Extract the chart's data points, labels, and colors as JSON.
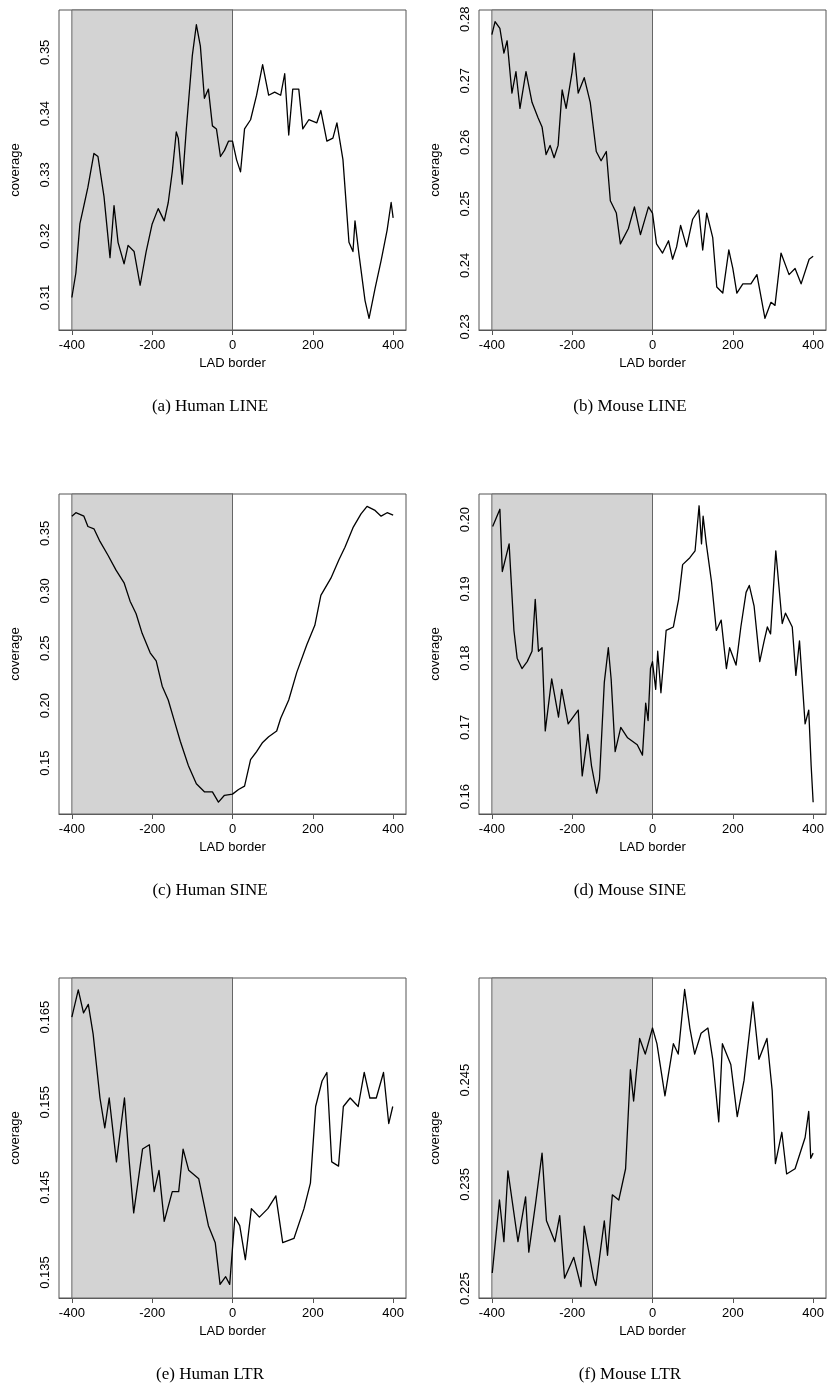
{
  "chart_data": [
    {
      "type": "line",
      "title": "(a) Human LINE",
      "xlabel": "LAD border",
      "ylabel": "coverage",
      "color": "#000000",
      "marker": "none",
      "xlim": [
        -432,
        432
      ],
      "xticks": [
        -400,
        -200,
        0,
        200,
        400
      ],
      "ylim": [
        0.3047,
        0.3569
      ],
      "yticks": [
        0.31,
        0.32,
        0.33,
        0.34,
        0.35
      ],
      "bands": [
        {
          "axis": "x",
          "from": -400,
          "to": 0,
          "color": "#d3d3d3"
        }
      ],
      "x": [
        -400,
        -390,
        -380,
        -370,
        -360,
        -345,
        -335,
        -320,
        -305,
        -295,
        -285,
        -270,
        -260,
        -245,
        -230,
        -215,
        -200,
        -185,
        -170,
        -160,
        -150,
        -140,
        -135,
        -125,
        -115,
        -100,
        -90,
        -80,
        -70,
        -60,
        -50,
        -40,
        -30,
        -20,
        -10,
        0,
        10,
        20,
        30,
        45,
        60,
        75,
        90,
        105,
        120,
        130,
        140,
        150,
        165,
        175,
        190,
        210,
        220,
        235,
        250,
        260,
        275,
        290,
        300,
        305,
        315,
        330,
        340,
        355,
        370,
        385,
        395,
        400
      ],
      "values": [
        0.31,
        0.314,
        0.322,
        0.325,
        0.328,
        0.3335,
        0.333,
        0.3265,
        0.3165,
        0.325,
        0.319,
        0.3155,
        0.3185,
        0.3175,
        0.312,
        0.3175,
        0.322,
        0.3245,
        0.3225,
        0.3255,
        0.3305,
        0.337,
        0.336,
        0.3285,
        0.3375,
        0.3495,
        0.3545,
        0.351,
        0.3425,
        0.344,
        0.338,
        0.3375,
        0.333,
        0.334,
        0.3355,
        0.3355,
        0.3325,
        0.3305,
        0.3375,
        0.339,
        0.343,
        0.348,
        0.343,
        0.3435,
        0.343,
        0.3465,
        0.3365,
        0.344,
        0.344,
        0.3375,
        0.339,
        0.3385,
        0.3405,
        0.3355,
        0.336,
        0.3385,
        0.3325,
        0.319,
        0.3175,
        0.3225,
        0.317,
        0.3095,
        0.3066,
        0.3115,
        0.316,
        0.321,
        0.3255,
        0.323
      ]
    },
    {
      "type": "line",
      "title": "(b) Mouse LINE",
      "xlabel": "LAD border",
      "ylabel": "coverage",
      "color": "#000000",
      "marker": "none",
      "xlim": [
        -432,
        432
      ],
      "xticks": [
        -400,
        -200,
        0,
        200,
        400
      ],
      "ylim": [
        0.2295,
        0.2815
      ],
      "yticks": [
        0.23,
        0.24,
        0.25,
        0.26,
        0.27,
        0.28
      ],
      "bands": [
        {
          "axis": "x",
          "from": -400,
          "to": 0,
          "color": "#d3d3d3"
        }
      ],
      "x": [
        -400,
        -392,
        -380,
        -370,
        -362,
        -350,
        -340,
        -330,
        -315,
        -300,
        -285,
        -275,
        -265,
        -255,
        -245,
        -235,
        -225,
        -215,
        -200,
        -195,
        -185,
        -170,
        -155,
        -140,
        -128,
        -115,
        -105,
        -90,
        -80,
        -60,
        -45,
        -30,
        -10,
        0,
        10,
        25,
        40,
        50,
        60,
        70,
        85,
        100,
        115,
        125,
        135,
        150,
        160,
        175,
        190,
        200,
        210,
        225,
        245,
        260,
        280,
        295,
        305,
        320,
        340,
        355,
        370,
        390,
        400
      ],
      "values": [
        0.2775,
        0.2796,
        0.2785,
        0.2745,
        0.2765,
        0.268,
        0.2715,
        0.2655,
        0.2715,
        0.2665,
        0.264,
        0.2625,
        0.258,
        0.2595,
        0.2575,
        0.2595,
        0.2685,
        0.2655,
        0.2715,
        0.2745,
        0.268,
        0.2705,
        0.2665,
        0.2585,
        0.257,
        0.2585,
        0.2505,
        0.2485,
        0.2435,
        0.246,
        0.2495,
        0.245,
        0.2495,
        0.2485,
        0.2435,
        0.242,
        0.244,
        0.241,
        0.243,
        0.2465,
        0.243,
        0.2475,
        0.249,
        0.2425,
        0.2485,
        0.2445,
        0.2365,
        0.2355,
        0.2425,
        0.2395,
        0.2355,
        0.237,
        0.237,
        0.2385,
        0.2314,
        0.234,
        0.2335,
        0.242,
        0.2385,
        0.2395,
        0.237,
        0.241,
        0.2415
      ]
    },
    {
      "type": "line",
      "title": "(c) Human SINE",
      "xlabel": "LAD border",
      "ylabel": "coverage",
      "color": "#000000",
      "marker": "none",
      "xlim": [
        -432,
        432
      ],
      "xticks": [
        -400,
        -200,
        0,
        200,
        400
      ],
      "ylim": [
        0.1057,
        0.3843
      ],
      "yticks": [
        0.15,
        {
          "value": 0.2,
          "label": "0.20"
        },
        0.25,
        {
          "value": 0.3,
          "label": "0.30"
        },
        0.35
      ],
      "bands": [
        {
          "axis": "x",
          "from": -400,
          "to": 0,
          "color": "#d3d3d3"
        }
      ],
      "x": [
        -400,
        -390,
        -370,
        -360,
        -345,
        -330,
        -310,
        -290,
        -270,
        -255,
        -240,
        -225,
        -205,
        -190,
        -175,
        -160,
        -145,
        -130,
        -110,
        -90,
        -70,
        -50,
        -35,
        -20,
        0,
        15,
        30,
        45,
        60,
        75,
        90,
        110,
        120,
        140,
        160,
        185,
        205,
        220,
        245,
        265,
        280,
        300,
        320,
        335,
        355,
        370,
        385,
        400
      ],
      "values": [
        0.365,
        0.368,
        0.365,
        0.356,
        0.354,
        0.343,
        0.331,
        0.318,
        0.307,
        0.291,
        0.28,
        0.263,
        0.246,
        0.239,
        0.217,
        0.205,
        0.187,
        0.169,
        0.148,
        0.132,
        0.125,
        0.125,
        0.116,
        0.122,
        0.123,
        0.127,
        0.13,
        0.153,
        0.16,
        0.168,
        0.173,
        0.178,
        0.189,
        0.205,
        0.229,
        0.253,
        0.27,
        0.296,
        0.311,
        0.327,
        0.338,
        0.355,
        0.367,
        0.3735,
        0.37,
        0.365,
        0.368,
        0.366
      ]
    },
    {
      "type": "line",
      "title": "(d) Mouse SINE",
      "xlabel": "LAD border",
      "ylabel": "coverage",
      "color": "#000000",
      "marker": "none",
      "xlim": [
        -432,
        432
      ],
      "xticks": [
        -400,
        -200,
        0,
        200,
        400
      ],
      "ylim": [
        0.1575,
        0.2037
      ],
      "yticks": [
        0.16,
        0.17,
        0.18,
        0.19,
        {
          "value": 0.2,
          "label": "0.20"
        }
      ],
      "bands": [
        {
          "axis": "x",
          "from": -400,
          "to": 0,
          "color": "#d3d3d3"
        }
      ],
      "x": [
        -398,
        -380,
        -374,
        -357,
        -345,
        -337,
        -325,
        -312,
        -300,
        -292,
        -284,
        -275,
        -267,
        -251,
        -234,
        -226,
        -210,
        -185,
        -175,
        -161,
        -152,
        -139,
        -132,
        -120,
        -110,
        -103,
        -93,
        -79,
        -62,
        -38,
        -25,
        -17,
        -11,
        -5,
        0,
        8,
        13,
        21,
        34,
        52,
        65,
        75,
        93,
        106,
        116,
        122,
        126,
        134,
        147,
        159,
        171,
        184,
        192,
        208,
        220,
        233,
        241,
        253,
        267,
        278,
        286,
        294,
        307,
        323,
        331,
        348,
        357,
        366,
        380,
        389,
        395,
        400
      ],
      "values": [
        0.199,
        0.2015,
        0.1925,
        0.1965,
        0.184,
        0.18,
        0.1785,
        0.1795,
        0.181,
        0.1885,
        0.181,
        0.1815,
        0.1695,
        0.177,
        0.1715,
        0.1755,
        0.1705,
        0.1725,
        0.163,
        0.169,
        0.1645,
        0.1605,
        0.1625,
        0.1765,
        0.1815,
        0.177,
        0.1665,
        0.17,
        0.1685,
        0.1675,
        0.166,
        0.1735,
        0.171,
        0.1785,
        0.1795,
        0.1755,
        0.181,
        0.175,
        0.184,
        0.1845,
        0.1885,
        0.1935,
        0.1945,
        0.1955,
        0.202,
        0.1965,
        0.2005,
        0.1965,
        0.191,
        0.184,
        0.1855,
        0.1785,
        0.1815,
        0.179,
        0.1845,
        0.1895,
        0.1905,
        0.1875,
        0.1795,
        0.1825,
        0.1845,
        0.1835,
        0.1955,
        0.185,
        0.1865,
        0.1845,
        0.1775,
        0.1825,
        0.1705,
        0.1725,
        0.1645,
        0.1592
      ]
    },
    {
      "type": "line",
      "title": "(e) Human LTR",
      "xlabel": "LAD border",
      "ylabel": "coverage",
      "color": "#000000",
      "marker": "none",
      "xlim": [
        -432,
        432
      ],
      "xticks": [
        -400,
        -200,
        0,
        200,
        400
      ],
      "ylim": [
        0.132,
        0.1696
      ],
      "yticks": [
        0.135,
        {
          "value": 0.14,
          "label": null
        },
        0.145,
        {
          "value": 0.15,
          "label": null
        },
        0.155,
        {
          "value": 0.16,
          "label": null
        },
        0.165
      ],
      "bands": [
        {
          "axis": "x",
          "from": -400,
          "to": 0,
          "color": "#d3d3d3"
        }
      ],
      "x": [
        -400,
        -384,
        -371,
        -359,
        -347,
        -330,
        -318,
        -307,
        -289,
        -269,
        -257,
        -246,
        -224,
        -207,
        -195,
        -183,
        -170,
        -150,
        -134,
        -123,
        -109,
        -84,
        -60,
        -43,
        -31,
        -17,
        -7,
        6,
        18,
        32,
        47,
        67,
        88,
        108,
        125,
        153,
        178,
        194,
        207,
        223,
        235,
        247,
        264,
        276,
        293,
        313,
        328,
        342,
        358,
        376,
        389,
        399
      ],
      "values": [
        0.165,
        0.1682,
        0.1655,
        0.1665,
        0.163,
        0.1555,
        0.152,
        0.1555,
        0.148,
        0.1555,
        0.148,
        0.142,
        0.1495,
        0.15,
        0.1445,
        0.147,
        0.141,
        0.1445,
        0.1445,
        0.1495,
        0.147,
        0.146,
        0.1405,
        0.1385,
        0.1336,
        0.1345,
        0.1336,
        0.1415,
        0.1405,
        0.1365,
        0.1425,
        0.1415,
        0.1425,
        0.144,
        0.1385,
        0.139,
        0.1425,
        0.1455,
        0.1545,
        0.1575,
        0.1585,
        0.148,
        0.1475,
        0.1545,
        0.1555,
        0.1545,
        0.1585,
        0.1555,
        0.1555,
        0.1585,
        0.1525,
        0.1545
      ]
    },
    {
      "type": "line",
      "title": "(f) Mouse LTR",
      "xlabel": "LAD border",
      "ylabel": "coverage",
      "color": "#000000",
      "marker": "none",
      "xlim": [
        -432,
        432
      ],
      "xticks": [
        -400,
        -200,
        0,
        200,
        400
      ],
      "ylim": [
        0.2241,
        0.2548
      ],
      "yticks": [
        0.225,
        {
          "value": 0.23,
          "label": null
        },
        0.235,
        {
          "value": 0.24,
          "label": null
        },
        0.245,
        {
          "value": 0.25,
          "label": null
        }
      ],
      "bands": [
        {
          "axis": "x",
          "from": -400,
          "to": 0,
          "color": "#d3d3d3"
        }
      ],
      "x": [
        -399,
        -381,
        -370,
        -360,
        -335,
        -316,
        -308,
        -291,
        -275,
        -264,
        -243,
        -231,
        -219,
        -196,
        -178,
        -170,
        -147,
        -141,
        -120,
        -112,
        -100,
        -84,
        -67,
        -55,
        -47,
        -32,
        -18,
        0,
        11,
        31,
        52,
        64,
        80,
        93,
        105,
        121,
        138,
        150,
        165,
        174,
        195,
        211,
        228,
        250,
        265,
        285,
        298,
        306,
        322,
        334,
        355,
        380,
        389,
        394,
        400
      ],
      "values": [
        0.2265,
        0.2335,
        0.2295,
        0.2363,
        0.2295,
        0.2338,
        0.2285,
        0.2332,
        0.238,
        0.2315,
        0.2295,
        0.232,
        0.226,
        0.228,
        0.2252,
        0.231,
        0.226,
        0.2253,
        0.2315,
        0.2282,
        0.234,
        0.2335,
        0.2365,
        0.246,
        0.243,
        0.249,
        0.2475,
        0.25,
        0.2485,
        0.2435,
        0.2485,
        0.2475,
        0.2537,
        0.25,
        0.2475,
        0.2495,
        0.25,
        0.247,
        0.241,
        0.2485,
        0.2465,
        0.2415,
        0.245,
        0.2525,
        0.247,
        0.249,
        0.244,
        0.237,
        0.24,
        0.236,
        0.2365,
        0.2395,
        0.242,
        0.2375,
        0.238
      ]
    }
  ]
}
